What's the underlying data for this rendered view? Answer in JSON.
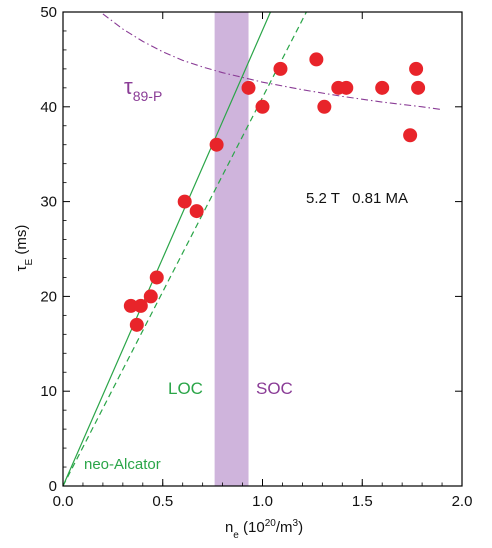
{
  "chart_data": {
    "type": "scatter",
    "xlabel": "n",
    "xlabel_sub": "e",
    "xlabel_suffix": " (10",
    "xlabel_sup": "20",
    "xlabel_unit": "/m",
    "xlabel_unit_sup": "3",
    "xlabel_close": ")",
    "ylabel": "τ",
    "ylabel_sub": "E",
    "ylabel_suffix": " (ms)",
    "xlim": [
      0.0,
      2.0
    ],
    "ylim": [
      0,
      50
    ],
    "xticks": [
      0.0,
      0.5,
      1.0,
      1.5,
      2.0
    ],
    "xtick_labels": [
      "0.0",
      "0.5",
      "1.0",
      "1.5",
      "2.0"
    ],
    "yticks": [
      0,
      10,
      20,
      30,
      40,
      50
    ],
    "ytick_labels": [
      "0",
      "10",
      "20",
      "30",
      "40",
      "50"
    ],
    "band": {
      "x0": 0.76,
      "x1": 0.93,
      "color": "#cfb4dc"
    },
    "points": [
      {
        "x": 0.34,
        "y": 19
      },
      {
        "x": 0.37,
        "y": 17
      },
      {
        "x": 0.39,
        "y": 19
      },
      {
        "x": 0.44,
        "y": 20
      },
      {
        "x": 0.47,
        "y": 22
      },
      {
        "x": 0.61,
        "y": 30
      },
      {
        "x": 0.67,
        "y": 29
      },
      {
        "x": 0.77,
        "y": 36
      },
      {
        "x": 0.93,
        "y": 42
      },
      {
        "x": 1.0,
        "y": 40
      },
      {
        "x": 1.09,
        "y": 44
      },
      {
        "x": 1.27,
        "y": 45
      },
      {
        "x": 1.31,
        "y": 40
      },
      {
        "x": 1.38,
        "y": 42
      },
      {
        "x": 1.42,
        "y": 42
      },
      {
        "x": 1.6,
        "y": 42
      },
      {
        "x": 1.74,
        "y": 37
      },
      {
        "x": 1.77,
        "y": 44
      },
      {
        "x": 1.78,
        "y": 42
      }
    ],
    "point_color": "#e8242a",
    "lines": [
      {
        "style": "solid",
        "color": "#2aa548",
        "x0": 0.0,
        "y0": 0,
        "x1": 1.04,
        "y1": 50
      },
      {
        "style": "dashed",
        "color": "#2aa548",
        "x0": 0.0,
        "y0": 0,
        "x1": 1.22,
        "y1": 50
      }
    ],
    "curve": {
      "style": "dashdot",
      "color": "#8a3c96",
      "points": [
        [
          0.2,
          49.8
        ],
        [
          0.3,
          48.2
        ],
        [
          0.4,
          46.9
        ],
        [
          0.5,
          45.8
        ],
        [
          0.6,
          44.9
        ],
        [
          0.7,
          44.2
        ],
        [
          0.8,
          43.6
        ],
        [
          0.9,
          43.1
        ],
        [
          1.0,
          42.6
        ],
        [
          1.2,
          41.8
        ],
        [
          1.4,
          41.1
        ],
        [
          1.6,
          40.5
        ],
        [
          1.8,
          40.0
        ],
        [
          1.9,
          39.7
        ]
      ]
    },
    "annotations": {
      "tau_label": "τ",
      "tau_sub": "89-P",
      "tau_color": "#8a3c96",
      "field_current": "5.2 T   0.81 MA",
      "loc": "LOC",
      "loc_color": "#2aa548",
      "soc": "SOC",
      "soc_color": "#8a3c96",
      "neo_alcator": "neo-Alcator",
      "neo_color": "#2aa548"
    }
  }
}
